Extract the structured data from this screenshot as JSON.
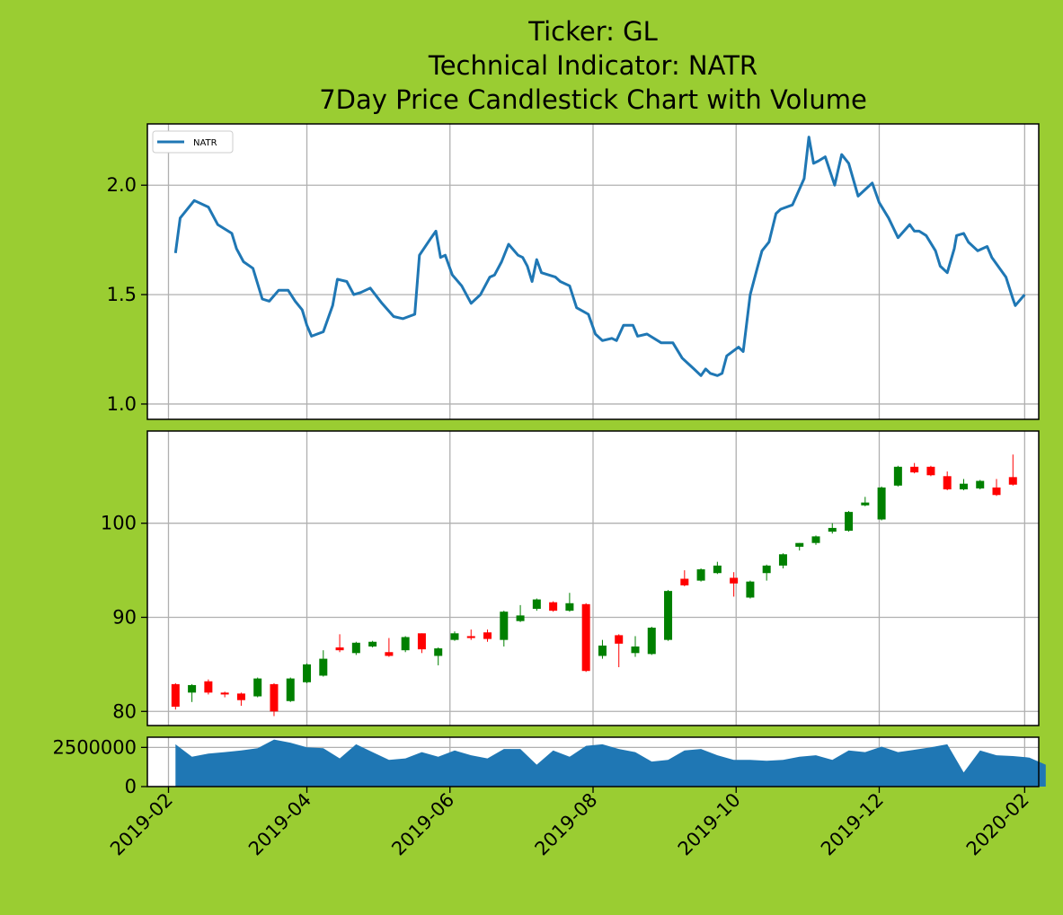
{
  "title_lines": [
    "Ticker: GL",
    "Technical Indicator: NATR",
    "7Day Price Candlestick Chart with Volume"
  ],
  "colors": {
    "background": "#9acd32",
    "panel": "#ffffff",
    "grid": "#b0b0b0",
    "line": "#1f77b4",
    "volume": "#1f77b4",
    "up": "#008000",
    "down": "#ff0000"
  },
  "chart_data": [
    {
      "type": "line",
      "panel": "indicator",
      "series": [
        {
          "name": "NATR"
        }
      ],
      "legend": "top-left",
      "grid": true,
      "ylim": [
        0.93,
        2.28
      ],
      "yticks": [
        "1.0",
        "1.5",
        "2.0"
      ],
      "points": [
        [
          "2019-02-04",
          1.69
        ],
        [
          "2019-02-06",
          1.85
        ],
        [
          "2019-02-12",
          1.93
        ],
        [
          "2019-02-18",
          1.9
        ],
        [
          "2019-02-22",
          1.82
        ],
        [
          "2019-02-28",
          1.78
        ],
        [
          "2019-03-02",
          1.71
        ],
        [
          "2019-03-05",
          1.65
        ],
        [
          "2019-03-09",
          1.62
        ],
        [
          "2019-03-13",
          1.48
        ],
        [
          "2019-03-16",
          1.47
        ],
        [
          "2019-03-20",
          1.52
        ],
        [
          "2019-03-24",
          1.52
        ],
        [
          "2019-03-27",
          1.47
        ],
        [
          "2019-03-30",
          1.43
        ],
        [
          "2019-04-01",
          1.36
        ],
        [
          "2019-04-03",
          1.31
        ],
        [
          "2019-04-08",
          1.33
        ],
        [
          "2019-04-12",
          1.45
        ],
        [
          "2019-04-14",
          1.57
        ],
        [
          "2019-04-18",
          1.56
        ],
        [
          "2019-04-21",
          1.5
        ],
        [
          "2019-04-24",
          1.51
        ],
        [
          "2019-04-28",
          1.53
        ],
        [
          "2019-05-03",
          1.46
        ],
        [
          "2019-05-08",
          1.4
        ],
        [
          "2019-05-12",
          1.39
        ],
        [
          "2019-05-17",
          1.41
        ],
        [
          "2019-05-19",
          1.68
        ],
        [
          "2019-05-24",
          1.76
        ],
        [
          "2019-05-26",
          1.79
        ],
        [
          "2019-05-28",
          1.67
        ],
        [
          "2019-05-30",
          1.68
        ],
        [
          "2019-06-02",
          1.59
        ],
        [
          "2019-06-06",
          1.54
        ],
        [
          "2019-06-10",
          1.46
        ],
        [
          "2019-06-14",
          1.5
        ],
        [
          "2019-06-18",
          1.58
        ],
        [
          "2019-06-20",
          1.59
        ],
        [
          "2019-06-23",
          1.65
        ],
        [
          "2019-06-26",
          1.73
        ],
        [
          "2019-06-30",
          1.68
        ],
        [
          "2019-07-02",
          1.67
        ],
        [
          "2019-07-04",
          1.63
        ],
        [
          "2019-07-06",
          1.56
        ],
        [
          "2019-07-08",
          1.66
        ],
        [
          "2019-07-10",
          1.6
        ],
        [
          "2019-07-16",
          1.58
        ],
        [
          "2019-07-18",
          1.56
        ],
        [
          "2019-07-22",
          1.54
        ],
        [
          "2019-07-25",
          1.44
        ],
        [
          "2019-07-30",
          1.41
        ],
        [
          "2019-08-02",
          1.32
        ],
        [
          "2019-08-05",
          1.29
        ],
        [
          "2019-08-09",
          1.3
        ],
        [
          "2019-08-11",
          1.29
        ],
        [
          "2019-08-14",
          1.36
        ],
        [
          "2019-08-18",
          1.36
        ],
        [
          "2019-08-20",
          1.31
        ],
        [
          "2019-08-24",
          1.32
        ],
        [
          "2019-08-30",
          1.28
        ],
        [
          "2019-09-04",
          1.28
        ],
        [
          "2019-09-08",
          1.21
        ],
        [
          "2019-09-10",
          1.19
        ],
        [
          "2019-09-13",
          1.16
        ],
        [
          "2019-09-16",
          1.13
        ],
        [
          "2019-09-18",
          1.16
        ],
        [
          "2019-09-20",
          1.14
        ],
        [
          "2019-09-23",
          1.13
        ],
        [
          "2019-09-25",
          1.14
        ],
        [
          "2019-09-27",
          1.22
        ],
        [
          "2019-10-02",
          1.26
        ],
        [
          "2019-10-04",
          1.24
        ],
        [
          "2019-10-07",
          1.5
        ],
        [
          "2019-10-10",
          1.62
        ],
        [
          "2019-10-12",
          1.7
        ],
        [
          "2019-10-15",
          1.74
        ],
        [
          "2019-10-18",
          1.87
        ],
        [
          "2019-10-20",
          1.89
        ],
        [
          "2019-10-25",
          1.91
        ],
        [
          "2019-10-30",
          2.03
        ],
        [
          "2019-11-01",
          2.22
        ],
        [
          "2019-11-03",
          2.1
        ],
        [
          "2019-11-05",
          2.11
        ],
        [
          "2019-11-08",
          2.13
        ],
        [
          "2019-11-12",
          2.0
        ],
        [
          "2019-11-15",
          2.14
        ],
        [
          "2019-11-18",
          2.1
        ],
        [
          "2019-11-22",
          1.95
        ],
        [
          "2019-11-25",
          1.98
        ],
        [
          "2019-11-28",
          2.01
        ],
        [
          "2019-12-01",
          1.92
        ],
        [
          "2019-12-05",
          1.85
        ],
        [
          "2019-12-09",
          1.76
        ],
        [
          "2019-12-14",
          1.82
        ],
        [
          "2019-12-16",
          1.79
        ],
        [
          "2019-12-18",
          1.79
        ],
        [
          "2019-12-21",
          1.77
        ],
        [
          "2019-12-25",
          1.7
        ],
        [
          "2019-12-27",
          1.63
        ],
        [
          "2019-12-30",
          1.6
        ],
        [
          "2020-01-02",
          1.71
        ],
        [
          "2020-01-03",
          1.77
        ],
        [
          "2020-01-06",
          1.78
        ],
        [
          "2020-01-08",
          1.74
        ],
        [
          "2020-01-12",
          1.7
        ],
        [
          "2020-01-16",
          1.72
        ],
        [
          "2020-01-18",
          1.67
        ],
        [
          "2020-01-24",
          1.58
        ],
        [
          "2020-01-27",
          1.48
        ],
        [
          "2020-01-28",
          1.45
        ],
        [
          "2020-02-01",
          1.5
        ]
      ]
    },
    {
      "type": "candlestick",
      "panel": "price",
      "grid": true,
      "ylim": [
        78.5,
        109.8
      ],
      "yticks": [
        "80",
        "90",
        "100"
      ],
      "candles": [
        [
          "2019-02-04",
          82.9,
          80.5,
          83.0,
          80.2
        ],
        [
          "2019-02-11",
          82.0,
          82.8,
          82.9,
          81.0
        ],
        [
          "2019-02-18",
          83.2,
          82.0,
          83.4,
          81.8
        ],
        [
          "2019-02-25",
          82.0,
          81.8,
          82.1,
          81.5
        ],
        [
          "2019-03-04",
          81.9,
          81.2,
          82.0,
          80.6
        ],
        [
          "2019-03-11",
          81.6,
          83.5,
          83.6,
          81.5
        ],
        [
          "2019-03-18",
          82.9,
          80.0,
          83.0,
          79.5
        ],
        [
          "2019-03-25",
          81.1,
          83.5,
          83.6,
          81.0
        ],
        [
          "2019-04-01",
          83.1,
          85.0,
          85.1,
          83.0
        ],
        [
          "2019-04-08",
          83.8,
          85.6,
          86.5,
          83.7
        ],
        [
          "2019-04-15",
          86.8,
          86.5,
          88.2,
          86.3
        ],
        [
          "2019-04-22",
          86.2,
          87.3,
          87.4,
          86.0
        ],
        [
          "2019-04-29",
          86.9,
          87.4,
          87.5,
          86.8
        ],
        [
          "2019-05-06",
          86.3,
          85.9,
          87.8,
          85.8
        ],
        [
          "2019-05-13",
          86.5,
          87.9,
          88.0,
          86.3
        ],
        [
          "2019-05-20",
          88.3,
          86.6,
          88.3,
          86.2
        ],
        [
          "2019-05-27",
          85.9,
          86.7,
          86.8,
          84.9
        ],
        [
          "2019-06-03",
          87.6,
          88.3,
          88.5,
          87.5
        ],
        [
          "2019-06-10",
          88.0,
          87.8,
          88.7,
          87.6
        ],
        [
          "2019-06-17",
          88.4,
          87.7,
          88.7,
          87.4
        ],
        [
          "2019-06-24",
          87.6,
          90.6,
          90.7,
          86.9
        ],
        [
          "2019-07-01",
          89.6,
          90.2,
          91.3,
          89.5
        ],
        [
          "2019-07-08",
          90.9,
          91.9,
          92.0,
          90.7
        ],
        [
          "2019-07-15",
          91.6,
          90.7,
          91.7,
          90.6
        ],
        [
          "2019-07-22",
          90.7,
          91.5,
          92.6,
          90.6
        ],
        [
          "2019-07-29",
          91.4,
          84.3,
          91.5,
          84.2
        ],
        [
          "2019-08-05",
          85.9,
          87.0,
          87.6,
          85.6
        ],
        [
          "2019-08-12",
          88.1,
          87.2,
          88.2,
          84.7
        ],
        [
          "2019-08-19",
          86.2,
          86.9,
          88.0,
          85.8
        ],
        [
          "2019-08-26",
          86.1,
          88.9,
          89.0,
          86.0
        ],
        [
          "2019-09-02",
          87.6,
          92.8,
          92.9,
          87.5
        ],
        [
          "2019-09-09",
          94.1,
          93.4,
          95.0,
          93.3
        ],
        [
          "2019-09-16",
          93.9,
          95.1,
          95.2,
          93.8
        ],
        [
          "2019-09-23",
          94.7,
          95.5,
          95.9,
          94.6
        ],
        [
          "2019-09-30",
          94.2,
          93.6,
          94.8,
          92.2
        ],
        [
          "2019-10-07",
          92.1,
          93.8,
          93.9,
          92.0
        ],
        [
          "2019-10-14",
          94.7,
          95.5,
          95.6,
          93.9
        ],
        [
          "2019-10-21",
          95.5,
          96.7,
          96.8,
          95.2
        ],
        [
          "2019-10-28",
          97.5,
          97.9,
          97.9,
          97.1
        ],
        [
          "2019-11-04",
          97.9,
          98.6,
          98.7,
          97.7
        ],
        [
          "2019-11-11",
          99.1,
          99.5,
          100.0,
          98.9
        ],
        [
          "2019-11-18",
          99.2,
          101.2,
          101.3,
          99.1
        ],
        [
          "2019-11-25",
          101.9,
          102.2,
          102.8,
          101.8
        ],
        [
          "2019-12-02",
          100.4,
          103.8,
          103.9,
          100.3
        ],
        [
          "2019-12-09",
          104.0,
          106.0,
          106.1,
          103.9
        ],
        [
          "2019-12-16",
          106.0,
          105.4,
          106.4,
          105.3
        ],
        [
          "2019-12-23",
          106.0,
          105.1,
          106.1,
          105.0
        ],
        [
          "2019-12-30",
          105.0,
          103.6,
          105.5,
          103.5
        ],
        [
          "2020-01-06",
          103.6,
          104.2,
          104.7,
          103.5
        ],
        [
          "2020-01-13",
          103.7,
          104.5,
          104.6,
          103.6
        ],
        [
          "2020-01-20",
          103.8,
          103.0,
          104.7,
          102.9
        ],
        [
          "2020-01-27",
          104.9,
          104.1,
          107.3,
          104.0
        ]
      ]
    },
    {
      "type": "area",
      "panel": "volume",
      "grid": true,
      "ylim": [
        0,
        3150000
      ],
      "yticks": [
        "0",
        "2500000"
      ],
      "points": [
        [
          "2019-02-04",
          2700000
        ],
        [
          "2019-02-11",
          1900000
        ],
        [
          "2019-02-18",
          2100000
        ],
        [
          "2019-02-25",
          2200000
        ],
        [
          "2019-03-04",
          2300000
        ],
        [
          "2019-03-11",
          2450000
        ],
        [
          "2019-03-18",
          3000000
        ],
        [
          "2019-03-25",
          2800000
        ],
        [
          "2019-04-01",
          2500000
        ],
        [
          "2019-04-08",
          2450000
        ],
        [
          "2019-04-15",
          1800000
        ],
        [
          "2019-04-22",
          2700000
        ],
        [
          "2019-04-29",
          2200000
        ],
        [
          "2019-05-06",
          1700000
        ],
        [
          "2019-05-13",
          1800000
        ],
        [
          "2019-05-20",
          2200000
        ],
        [
          "2019-05-27",
          1900000
        ],
        [
          "2019-06-03",
          2300000
        ],
        [
          "2019-06-10",
          2000000
        ],
        [
          "2019-06-17",
          1800000
        ],
        [
          "2019-06-24",
          2400000
        ],
        [
          "2019-07-01",
          2400000
        ],
        [
          "2019-07-08",
          1400000
        ],
        [
          "2019-07-15",
          2300000
        ],
        [
          "2019-07-22",
          1900000
        ],
        [
          "2019-07-29",
          2600000
        ],
        [
          "2019-08-05",
          2700000
        ],
        [
          "2019-08-12",
          2400000
        ],
        [
          "2019-08-19",
          2200000
        ],
        [
          "2019-08-26",
          1600000
        ],
        [
          "2019-09-02",
          1700000
        ],
        [
          "2019-09-09",
          2300000
        ],
        [
          "2019-09-16",
          2400000
        ],
        [
          "2019-09-23",
          2000000
        ],
        [
          "2019-09-30",
          1700000
        ],
        [
          "2019-10-07",
          1700000
        ],
        [
          "2019-10-14",
          1650000
        ],
        [
          "2019-10-21",
          1700000
        ],
        [
          "2019-10-28",
          1900000
        ],
        [
          "2019-11-04",
          2000000
        ],
        [
          "2019-11-11",
          1700000
        ],
        [
          "2019-11-18",
          2300000
        ],
        [
          "2019-11-25",
          2200000
        ],
        [
          "2019-12-02",
          2550000
        ],
        [
          "2019-12-09",
          2200000
        ],
        [
          "2019-12-16",
          2350000
        ],
        [
          "2019-12-23",
          2500000
        ],
        [
          "2019-12-30",
          2700000
        ],
        [
          "2020-01-06",
          900000
        ],
        [
          "2020-01-13",
          2300000
        ],
        [
          "2020-01-20",
          2000000
        ],
        [
          "2020-01-27",
          1950000
        ],
        [
          "2020-02-03",
          1850000
        ],
        [
          "2020-02-10",
          1400000
        ]
      ]
    }
  ],
  "x_axis": {
    "range": [
      "2019-01-23",
      "2020-02-07"
    ],
    "ticks": [
      "2019-02",
      "2019-04",
      "2019-06",
      "2019-08",
      "2019-10",
      "2019-12",
      "2020-02"
    ],
    "tick_dates": [
      "2019-02-01",
      "2019-04-01",
      "2019-06-01",
      "2019-08-01",
      "2019-10-01",
      "2019-12-01",
      "2020-02-01"
    ]
  }
}
